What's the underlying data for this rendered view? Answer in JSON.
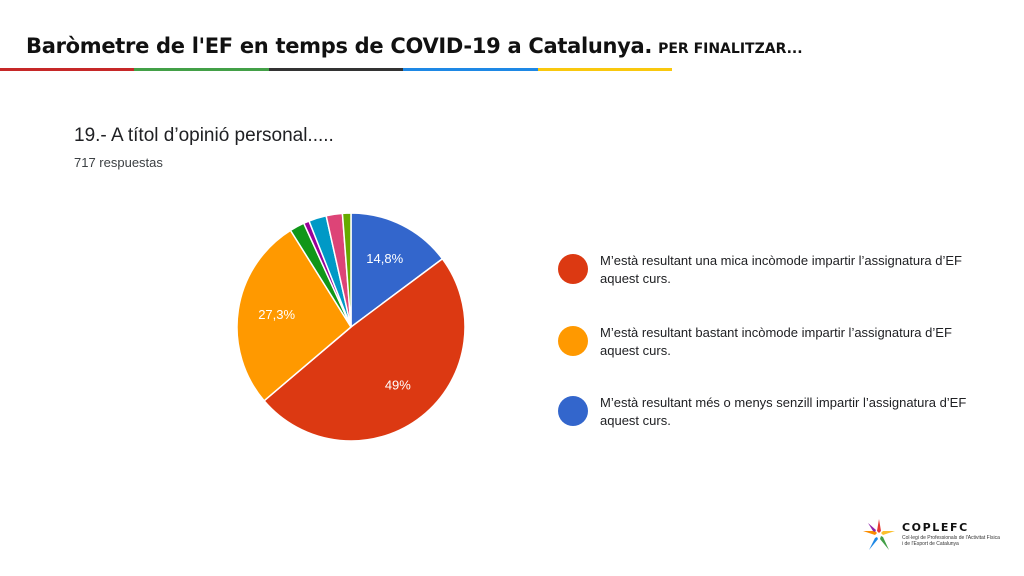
{
  "slide": {
    "title": "Baròmetre de l'EF en temps de COVID-19 a Catalunya.",
    "subtitle": "PER FINALITZAR..."
  },
  "header_bar_colors": [
    "#c62828",
    "#43a047",
    "#333333",
    "#1e88e5",
    "#f9c80e"
  ],
  "question": {
    "title": "19.- A títol d’opinió personal.....",
    "responses": "717 respuestas"
  },
  "chart_data": {
    "type": "pie",
    "start_angle_deg": 90,
    "direction": "clockwise",
    "labels": [
      "M’està resultant més o menys senzill impartir l’assignatura d’EF aquest curs.",
      "M’està resultant una mica incòmode impartir l’assignatura d’EF aquest curs.",
      "M’està resultant bastant incòmode impartir l’assignatura d’EF aquest curs.",
      "",
      "",
      "",
      "",
      ""
    ],
    "values": [
      14.8,
      49,
      27.3,
      2.1,
      0.8,
      2.5,
      2.3,
      1.2
    ],
    "data_labels": [
      "14,8%",
      "49%",
      "27,3%",
      "",
      "",
      "",
      "",
      ""
    ],
    "colors": [
      "#3366cc",
      "#dc3912",
      "#ff9900",
      "#109618",
      "#990099",
      "#0099c6",
      "#dd4477",
      "#66aa00"
    ],
    "legend_position": "right"
  },
  "legend": [
    {
      "label": "M’està resultant una mica incòmode impartir l’assignatura d’EF aquest curs.",
      "color": "#dc3912"
    },
    {
      "label": "M’està resultant bastant incòmode impartir l’assignatura d’EF aquest curs.",
      "color": "#ff9900"
    },
    {
      "label": "M’està resultant més o menys senzill impartir l’assignatura d’EF aquest curs.",
      "color": "#3366cc"
    }
  ],
  "footer": {
    "logo_name": "COPLEFC",
    "logo_tagline": "Col·legi de Professionals de l'Activitat Física i de l'Esport de Catalunya"
  }
}
